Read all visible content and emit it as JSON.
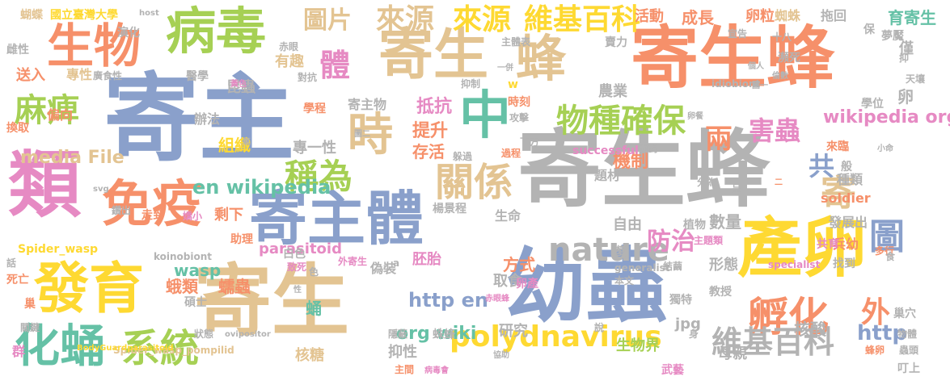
{
  "colors": {
    "blue": "#8aa0cb",
    "orange": "#f6906a",
    "green": "#a6d054",
    "pink": "#e68ac3",
    "yellow": "#fed932",
    "tan": "#e3c492",
    "gray": "#b3b3b3",
    "teal": "#65c1a6"
  },
  "words": [
    "寄主",
    "寄生蜂",
    "寄生蜂",
    "寄生",
    "類",
    "幼蟲",
    "寄主體",
    "產卵",
    "病毒",
    "寄生",
    "發育",
    "生物",
    "免疫",
    "中",
    "化蛹",
    "蜂",
    "時",
    "物種確保",
    "系統",
    "孵化",
    "關係",
    "稱為",
    "麻痺",
    "polydnavirus",
    "nature",
    "來源",
    "維基百科",
    "圖片",
    "來源",
    "維基百科",
    "圖",
    "體",
    "兩",
    "共",
    "害蟲",
    "防治",
    "en wikipedia",
    "http en",
    "http",
    "外",
    "寄",
    "media File",
    "wikipedia org",
    "org wiki",
    "抵抗",
    "提升",
    "存活",
    "寄主物",
    "專一性",
    "組織",
    "機制",
    "剩下",
    "parasitoid",
    "wasp",
    "蛾類",
    "蠕蟲",
    "蛹",
    "胚胎",
    "取食",
    "成長",
    "卵粒",
    "育寄生",
    "活動",
    "蜘蛛",
    "拖回",
    "送入",
    "專性",
    "廣食性",
    "偏向",
    "昆蟲",
    "有趣",
    "學程",
    "辦法",
    "對抗",
    "抑制",
    "時刻",
    "攻擊",
    "Spider_wasp",
    "Spider_wasp_pompilid",
    "koinobiont",
    "idiobiont",
    "successful",
    "generalist",
    "specialist",
    "soldier",
    "發展出",
    "兵幼",
    "種類",
    "數量",
    "形態",
    "教授",
    "本文",
    "生物界",
    "武藝",
    "核酸",
    "母親",
    "核糖",
    "研究",
    "抑性",
    "jpg",
    "卵產",
    "方式",
    "自由",
    "生命",
    "題材",
    "變",
    "植物",
    "農業",
    "學位",
    "卵",
    "僅",
    "天壤",
    "國立臺灣大學",
    "蝴蝶",
    "演化",
    "雌性",
    "醫學",
    "宣告",
    "夢魘",
    "瀕死",
    "抑",
    "host",
    "保",
    "賣力",
    "主體表",
    "主題類",
    "結繭",
    "獨特",
    "巢穴",
    "物體",
    "蟲頭",
    "叮上",
    "群",
    "巢",
    "關鍵",
    "死亡",
    "話",
    "色",
    "白色",
    "黃色",
    "赤眼",
    "蜂卵",
    "碩士",
    "狀態",
    "性",
    "隱蔽",
    "蛛蜂",
    "楊景程",
    "偽裝",
    "外寄生",
    "致死",
    "助理",
    "走到",
    "鑽出",
    "嬌小",
    "換取",
    "圖二",
    "面對",
    "來臨",
    "般",
    "小命",
    "分為",
    "呈",
    "多行",
    "共育",
    "找到",
    "a",
    "w",
    "下方",
    "過程",
    "躲過",
    "二",
    "十八",
    "一併",
    "主間",
    "病毒會",
    "協助",
    "說",
    "svg",
    "BodyGuardparasitoid",
    "ovipositor",
    "氧",
    "身",
    "食",
    "個人",
    "圖一",
    "倫數",
    "卵餐",
    "赤眼蜂"
  ]
}
